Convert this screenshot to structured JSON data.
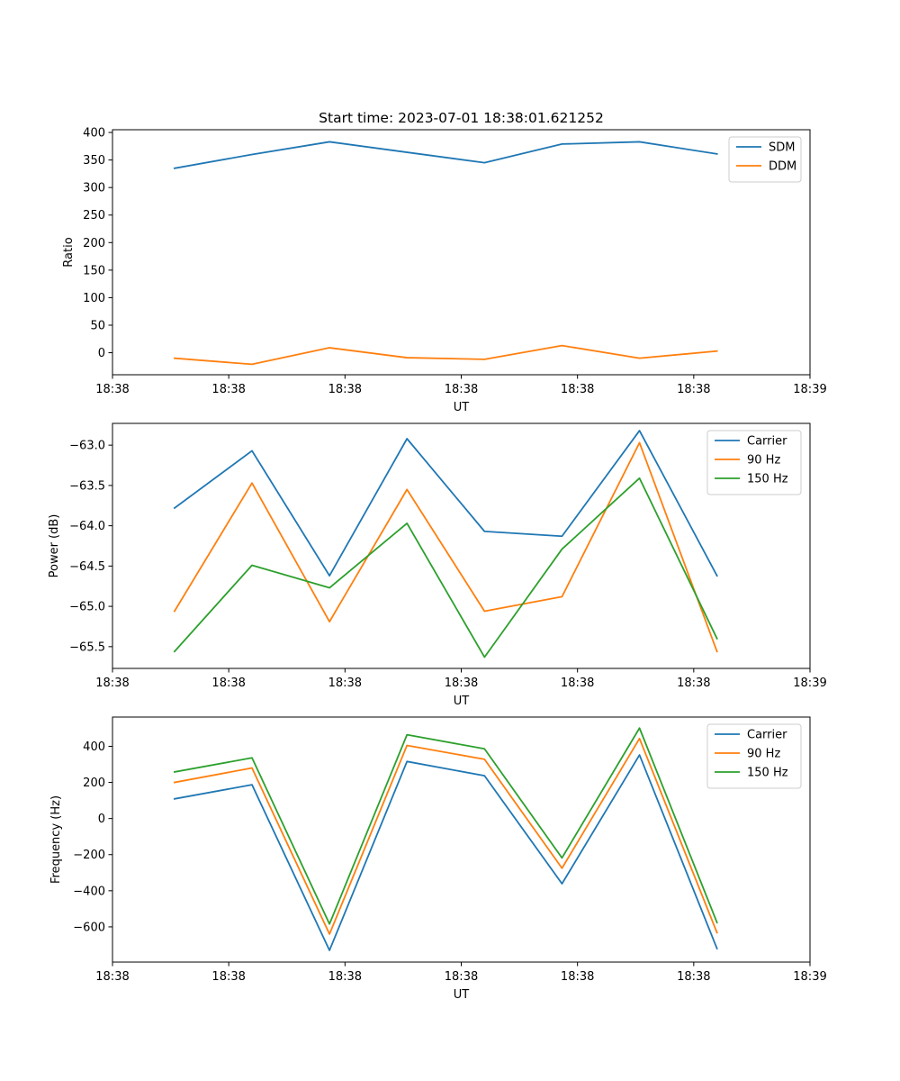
{
  "figure_title": "Start time: 2023-07-01 18:38:01.621252",
  "colors": {
    "blue": "#1f77b4",
    "orange": "#ff7f0e",
    "green": "#2ca02c"
  },
  "chart_data": [
    {
      "type": "line",
      "title": "Start time: 2023-07-01 18:38:01.621252",
      "xlabel": "UT",
      "ylabel": "Ratio",
      "x": [
        1,
        2,
        3,
        4,
        5,
        6,
        7,
        8
      ],
      "xlim": [
        0.2,
        9.2
      ],
      "x_ticks": [
        0.2,
        1.7,
        3.2,
        4.7,
        6.2,
        7.7,
        9.2
      ],
      "x_tick_labels": [
        "18:38",
        "18:38",
        "18:38",
        "18:38",
        "18:38",
        "18:38",
        "18:39"
      ],
      "ylim": [
        -40,
        405
      ],
      "y_ticks": [
        0,
        50,
        100,
        150,
        200,
        250,
        300,
        350,
        400
      ],
      "y_tick_labels": [
        "0",
        "50",
        "100",
        "150",
        "200",
        "250",
        "300",
        "350",
        "400"
      ],
      "legend": "top-right",
      "series": [
        {
          "name": "SDM",
          "color": "#1f77b4",
          "values": [
            335,
            360,
            383,
            364,
            345,
            379,
            383,
            361
          ]
        },
        {
          "name": "DDM",
          "color": "#ff7f0e",
          "values": [
            -10,
            -21,
            9,
            -9,
            -12,
            13,
            -10,
            3
          ]
        }
      ]
    },
    {
      "type": "line",
      "title": "",
      "xlabel": "UT",
      "ylabel": "Power (dB)",
      "x": [
        1,
        2,
        3,
        4,
        5,
        6,
        7,
        8
      ],
      "xlim": [
        0.2,
        9.2
      ],
      "x_ticks": [
        0.2,
        1.7,
        3.2,
        4.7,
        6.2,
        7.7,
        9.2
      ],
      "x_tick_labels": [
        "18:38",
        "18:38",
        "18:38",
        "18:38",
        "18:38",
        "18:38",
        "18:39"
      ],
      "ylim": [
        -65.77,
        -62.73
      ],
      "y_ticks": [
        -65.5,
        -65.0,
        -64.5,
        -64.0,
        -63.5,
        -63.0
      ],
      "y_tick_labels": [
        "−65.5",
        "−65.0",
        "−64.5",
        "−64.0",
        "−63.5",
        "−63.0"
      ],
      "legend": "top-right",
      "series": [
        {
          "name": "Carrier",
          "color": "#1f77b4",
          "values": [
            -63.78,
            -63.07,
            -64.62,
            -62.92,
            -64.07,
            -64.13,
            -62.82,
            -64.62
          ]
        },
        {
          "name": "90 Hz",
          "color": "#ff7f0e",
          "values": [
            -65.06,
            -63.47,
            -65.19,
            -63.55,
            -65.06,
            -64.88,
            -62.97,
            -65.56
          ]
        },
        {
          "name": "150 Hz",
          "color": "#2ca02c",
          "values": [
            -65.56,
            -64.49,
            -64.77,
            -63.97,
            -65.63,
            -64.29,
            -63.41,
            -65.4
          ]
        }
      ]
    },
    {
      "type": "line",
      "title": "",
      "xlabel": "UT",
      "ylabel": "Frequency (Hz)",
      "x": [
        1,
        2,
        3,
        4,
        5,
        6,
        7,
        8
      ],
      "xlim": [
        0.2,
        9.2
      ],
      "x_ticks": [
        0.2,
        1.7,
        3.2,
        4.7,
        6.2,
        7.7,
        9.2
      ],
      "x_tick_labels": [
        "18:38",
        "18:38",
        "18:38",
        "18:38",
        "18:38",
        "18:38",
        "18:39"
      ],
      "ylim": [
        -795,
        562
      ],
      "y_ticks": [
        -600,
        -400,
        -200,
        0,
        200,
        400
      ],
      "y_tick_labels": [
        "−600",
        "−400",
        "−200",
        "0",
        "200",
        "400"
      ],
      "legend": "top-right",
      "series": [
        {
          "name": "Carrier",
          "color": "#1f77b4",
          "values": [
            109,
            187,
            -730,
            316,
            237,
            -361,
            352,
            -720
          ]
        },
        {
          "name": "90 Hz",
          "color": "#ff7f0e",
          "values": [
            200,
            280,
            -640,
            405,
            328,
            -275,
            443,
            -632
          ]
        },
        {
          "name": "150 Hz",
          "color": "#2ca02c",
          "values": [
            258,
            336,
            -584,
            464,
            386,
            -218,
            501,
            -576
          ]
        }
      ]
    }
  ]
}
